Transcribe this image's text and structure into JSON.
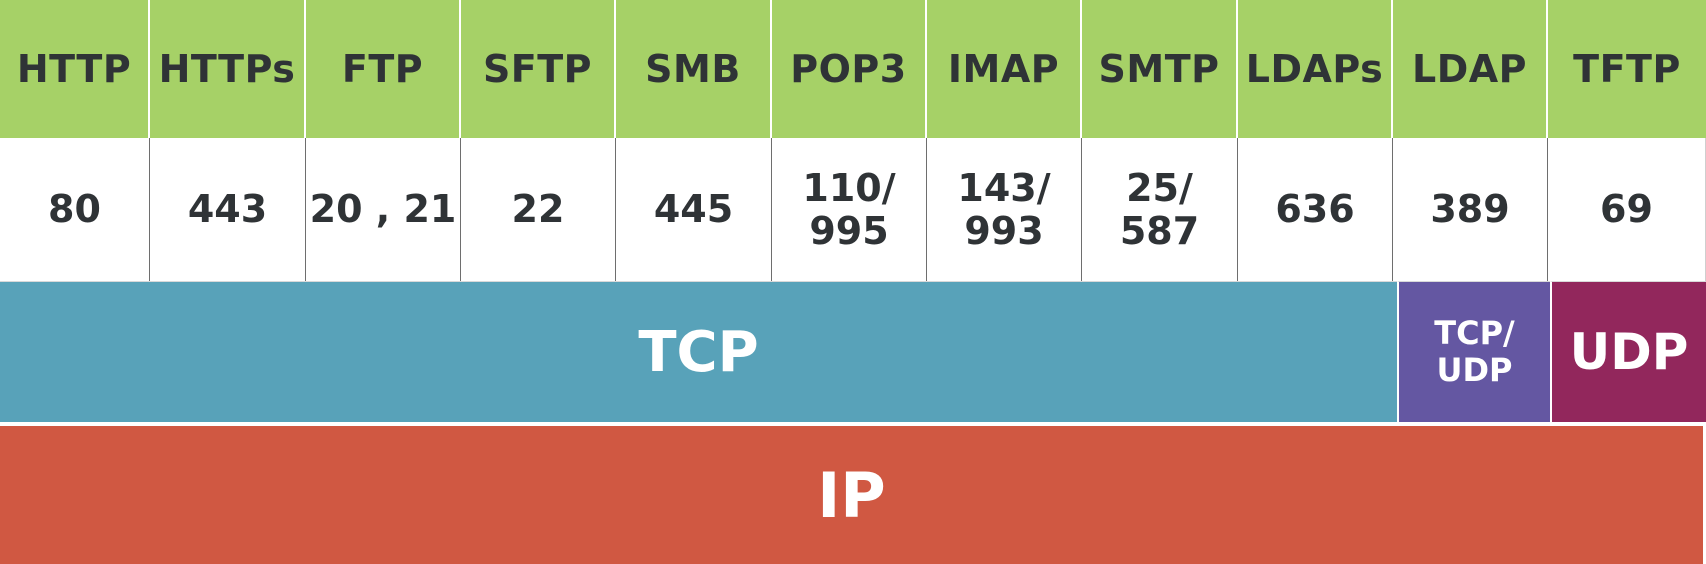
{
  "protocols": [
    {
      "name": "HTTP",
      "port": "80"
    },
    {
      "name": "HTTPs",
      "port": "443"
    },
    {
      "name": "FTP",
      "port": "20 , 21"
    },
    {
      "name": "SFTP",
      "port": "22"
    },
    {
      "name": "SMB",
      "port": "445"
    },
    {
      "name": "POP3",
      "port": "110/\n995"
    },
    {
      "name": "IMAP",
      "port": "143/\n993"
    },
    {
      "name": "SMTP",
      "port": "25/\n587"
    },
    {
      "name": "LDAPs",
      "port": "636"
    },
    {
      "name": "LDAP",
      "port": "389"
    },
    {
      "name": "TFTP",
      "port": "69"
    }
  ],
  "transport": {
    "tcp_label": "TCP",
    "tcp_udp_label": "TCP/\nUDP",
    "udp_label": "UDP"
  },
  "network": {
    "ip_label": "IP"
  },
  "colors": {
    "application_layer": "#a6d167",
    "tcp": "#58a2b9",
    "tcp_udp": "#6457a2",
    "udp": "#92275c",
    "ip": "#d05842"
  }
}
